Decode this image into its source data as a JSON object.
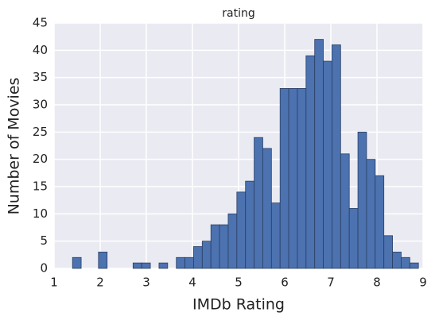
{
  "chart_data": {
    "type": "histogram",
    "title": "rating",
    "xlabel": "IMDb Rating",
    "ylabel": "Number of Movies",
    "bins": [
      1.4,
      1.5875,
      1.775,
      1.9625,
      2.15,
      2.3375,
      2.525,
      2.7125,
      2.9,
      3.0875,
      3.275,
      3.4625,
      3.65,
      3.8375,
      4.025,
      4.2125,
      4.4,
      4.5875,
      4.775,
      4.9625,
      5.15,
      5.3375,
      5.525,
      5.7125,
      5.9,
      6.0875,
      6.275,
      6.4625,
      6.65,
      6.8375,
      7.025,
      7.2125,
      7.4,
      7.5875,
      7.775,
      7.9625,
      8.15,
      8.3375,
      8.525,
      8.7125,
      8.9
    ],
    "values": [
      2,
      0,
      0,
      3,
      0,
      0,
      0,
      1,
      1,
      0,
      1,
      0,
      2,
      2,
      4,
      5,
      8,
      8,
      10,
      14,
      16,
      24,
      22,
      12,
      33,
      33,
      33,
      39,
      42,
      38,
      41,
      21,
      11,
      25,
      20,
      17,
      6,
      3,
      2,
      1
    ],
    "color": "#4c72b0",
    "edgecolor": "#2b3f63",
    "xlim": [
      1,
      9
    ],
    "xticks": [
      1,
      2,
      3,
      4,
      5,
      6,
      7,
      8,
      9
    ],
    "ylim": [
      0,
      45
    ],
    "yticks": [
      0,
      5,
      10,
      15,
      20,
      25,
      30,
      35,
      40,
      45
    ],
    "grid": true
  }
}
